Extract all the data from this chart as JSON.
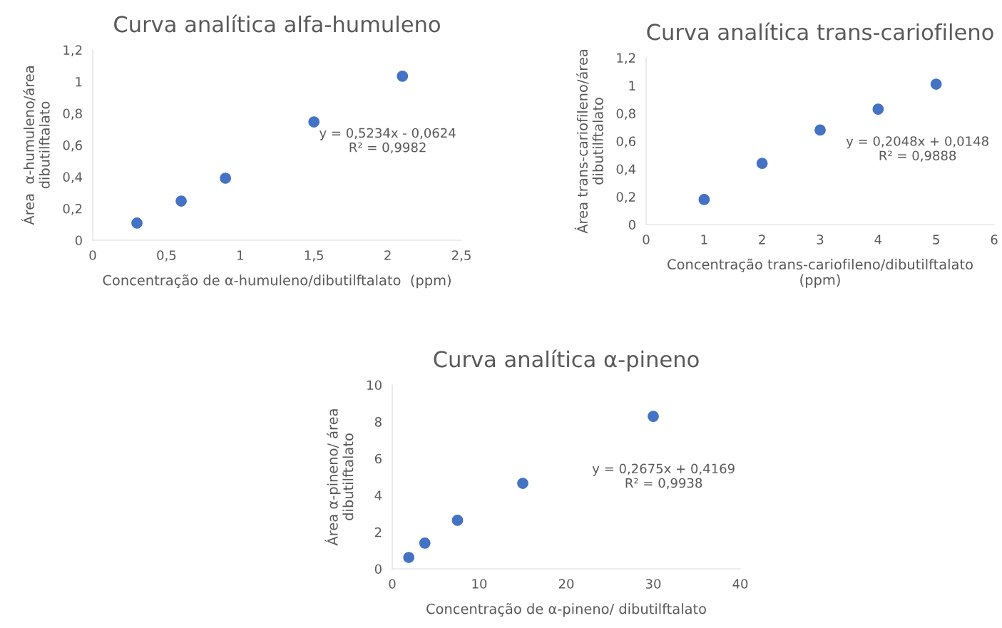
{
  "chart_data": [
    {
      "type": "scatter",
      "title": "Curva analítica alfa-humuleno",
      "xlabel": "Concentração de α-humuleno/dibutilftalato  (ppm)",
      "ylabel": "Área  α-humuleno/área\ndibutilftalato",
      "x": [
        0.3,
        0.6,
        0.9,
        1.5,
        2.1
      ],
      "series": [
        {
          "color": "#4472c4",
          "values": [
            0.108,
            0.247,
            0.391,
            0.746,
            1.034
          ]
        }
      ],
      "xlim": [
        0,
        2.5
      ],
      "xticks": [
        0,
        {
          "value": 0.5,
          "label": "0,5"
        },
        1,
        {
          "value": 1.5,
          "label": "1,5"
        },
        2,
        {
          "value": 2.5,
          "label": "2,5"
        }
      ],
      "ylim": [
        0,
        1.2
      ],
      "yticks": [
        0,
        {
          "value": 0.2,
          "label": "0,2"
        },
        {
          "value": 0.4,
          "label": "0,4"
        },
        {
          "value": 0.6,
          "label": "0,6"
        },
        {
          "value": 0.8,
          "label": "0,8"
        },
        1,
        {
          "value": 1.2,
          "label": "1,2"
        }
      ],
      "annotations": [
        "y = 0,5234x - 0,0624\nR² = 0,9982"
      ],
      "grid": false,
      "legend": false,
      "marker": "circle"
    },
    {
      "type": "scatter",
      "title": "Curva analítica trans-cariofileno",
      "xlabel": "Concentração trans-cariofileno/dibutilftalato\n(ppm)",
      "ylabel": "Área trans-cariofileno/área\ndibutilftalato",
      "x": [
        1,
        2,
        3,
        4,
        5
      ],
      "series": [
        {
          "color": "#4472c4",
          "values": [
            0.18,
            0.44,
            0.68,
            0.83,
            1.01
          ]
        }
      ],
      "xlim": [
        0,
        6
      ],
      "xticks": [
        0,
        1,
        2,
        3,
        4,
        5,
        6
      ],
      "ylim": [
        0,
        1.2
      ],
      "yticks": [
        0,
        {
          "value": 0.2,
          "label": "0,2"
        },
        {
          "value": 0.4,
          "label": "0,4"
        },
        {
          "value": 0.6,
          "label": "0,6"
        },
        {
          "value": 0.8,
          "label": "0,8"
        },
        1,
        {
          "value": 1.2,
          "label": "1,2"
        }
      ],
      "annotations": [
        "y = 0,2048x + 0,0148\nR² = 0,9888"
      ],
      "grid": false,
      "legend": false,
      "marker": "circle"
    },
    {
      "type": "scatter",
      "title": "Curva analítica α-pineno",
      "xlabel": "Concentração de α-pineno/ dibutilftalato",
      "ylabel": "Área α-pineno/ área\ndibutilftalato",
      "x": [
        1.9,
        3.75,
        7.5,
        15,
        30
      ],
      "series": [
        {
          "color": "#4472c4",
          "values": [
            0.62,
            1.4,
            2.64,
            4.65,
            8.29
          ]
        }
      ],
      "xlim": [
        0,
        40
      ],
      "xticks": [
        0,
        10,
        20,
        30,
        40
      ],
      "ylim": [
        0,
        10
      ],
      "yticks": [
        0,
        2,
        4,
        6,
        8,
        10
      ],
      "annotations": [
        "y = 0,2675x + 0,4169\nR² = 0,9938"
      ],
      "grid": false,
      "legend": false,
      "marker": "circle"
    }
  ]
}
